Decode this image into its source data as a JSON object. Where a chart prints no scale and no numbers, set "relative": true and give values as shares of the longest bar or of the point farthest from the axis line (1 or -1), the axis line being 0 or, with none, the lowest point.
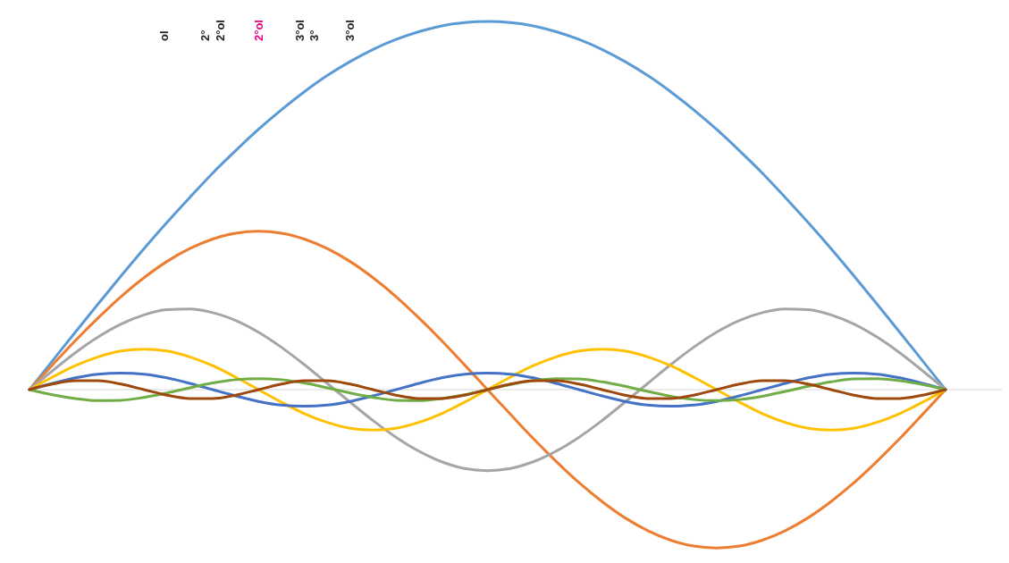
{
  "chart_data": {
    "type": "line",
    "relative": true,
    "marker": "none",
    "line_style": "solid",
    "annotations": [
      "ol",
      "2°",
      "2°ol",
      "2°ol",
      "3°ol",
      "3°",
      "3°ol"
    ],
    "categories": [
      null,
      null,
      null,
      null,
      null,
      null,
      null,
      null,
      null,
      null,
      null,
      null,
      null,
      null,
      null,
      null,
      null,
      null,
      null,
      null,
      null,
      null,
      null,
      null,
      null,
      null,
      null,
      null,
      null,
      null,
      null,
      null,
      null,
      null,
      null,
      null,
      null,
      null,
      null,
      null,
      null
    ],
    "series": [
      {
        "color": "#5b9bd5",
        "values": [
          0,
          0.078,
          0.156,
          0.233,
          0.309,
          0.383,
          0.454,
          0.522,
          0.588,
          0.649,
          0.707,
          0.76,
          0.809,
          0.853,
          0.891,
          0.924,
          0.951,
          0.972,
          0.988,
          0.997,
          1,
          0.997,
          0.988,
          0.972,
          0.951,
          0.924,
          0.891,
          0.853,
          0.809,
          0.76,
          0.707,
          0.649,
          0.588,
          0.522,
          0.454,
          0.383,
          0.309,
          0.233,
          0.156,
          0.078,
          0
        ]
      },
      {
        "color": "#ed7d31",
        "values": [
          0,
          0.067,
          0.133,
          0.195,
          0.253,
          0.304,
          0.348,
          0.383,
          0.409,
          0.425,
          0.43,
          0.425,
          0.409,
          0.383,
          0.348,
          0.304,
          0.253,
          0.195,
          0.133,
          0.067,
          0,
          -0.067,
          -0.133,
          -0.195,
          -0.253,
          -0.304,
          -0.348,
          -0.383,
          -0.409,
          -0.425,
          -0.43,
          -0.425,
          -0.409,
          -0.383,
          -0.348,
          -0.304,
          -0.253,
          -0.195,
          -0.133,
          -0.067,
          0
        ]
      },
      {
        "color": "#a5a5a5",
        "values": [
          0,
          0.051,
          0.1,
          0.143,
          0.178,
          0.203,
          0.217,
          0.219,
          0.209,
          0.188,
          0.156,
          0.115,
          0.068,
          0.017,
          -0.034,
          -0.084,
          -0.129,
          -0.167,
          -0.196,
          -0.214,
          -0.22,
          -0.214,
          -0.196,
          -0.167,
          -0.129,
          -0.084,
          -0.034,
          0.017,
          0.068,
          0.115,
          0.156,
          0.188,
          0.209,
          0.219,
          0.217,
          0.203,
          0.178,
          0.143,
          0.1,
          0.051,
          0
        ]
      },
      {
        "color": "#ffc000",
        "values": [
          0,
          0.034,
          0.065,
          0.089,
          0.105,
          0.11,
          0.105,
          0.089,
          0.065,
          0.034,
          0,
          -0.034,
          -0.065,
          -0.089,
          -0.105,
          -0.11,
          -0.105,
          -0.089,
          -0.065,
          -0.034,
          0,
          0.034,
          0.065,
          0.089,
          0.105,
          0.11,
          0.105,
          0.089,
          0.065,
          0.034,
          0,
          -0.034,
          -0.065,
          -0.089,
          -0.105,
          -0.11,
          -0.105,
          -0.089,
          -0.065,
          -0.034,
          0
        ]
      },
      {
        "color": "#4472c4",
        "values": [
          0,
          0.017,
          0.032,
          0.042,
          0.045,
          0.042,
          0.032,
          0.017,
          0,
          -0.017,
          -0.032,
          -0.042,
          -0.045,
          -0.042,
          -0.032,
          -0.017,
          0,
          0.017,
          0.032,
          0.042,
          0.045,
          0.042,
          0.032,
          0.017,
          0,
          -0.017,
          -0.032,
          -0.042,
          -0.045,
          -0.042,
          -0.032,
          -0.017,
          0,
          0.017,
          0.032,
          0.042,
          0.045,
          0.042,
          0.032,
          0.017,
          0
        ]
      },
      {
        "color": "#70ad47",
        "values": [
          0,
          -0.014,
          -0.024,
          -0.03,
          -0.029,
          -0.021,
          -0.009,
          0.005,
          0.018,
          0.027,
          0.03,
          0.027,
          0.018,
          0.005,
          -0.009,
          -0.021,
          -0.029,
          -0.03,
          -0.024,
          -0.014,
          0,
          0.014,
          0.024,
          0.03,
          0.029,
          0.021,
          0.009,
          -0.005,
          -0.018,
          -0.027,
          -0.03,
          -0.027,
          -0.018,
          -0.005,
          0.009,
          0.021,
          0.029,
          0.03,
          0.024,
          0.014,
          0
        ]
      },
      {
        "color": "#9e480e",
        "values": [
          0,
          0.015,
          0.024,
          0.024,
          0.015,
          0,
          -0.015,
          -0.024,
          -0.024,
          -0.015,
          0,
          0.015,
          0.024,
          0.024,
          0.015,
          0,
          -0.015,
          -0.024,
          -0.024,
          -0.015,
          0,
          0.015,
          0.024,
          0.024,
          0.015,
          0,
          -0.015,
          -0.024,
          -0.024,
          -0.015,
          0,
          0.015,
          0.024,
          0.024,
          0.015,
          0,
          -0.015,
          -0.024,
          -0.024,
          -0.015,
          0
        ]
      }
    ]
  }
}
